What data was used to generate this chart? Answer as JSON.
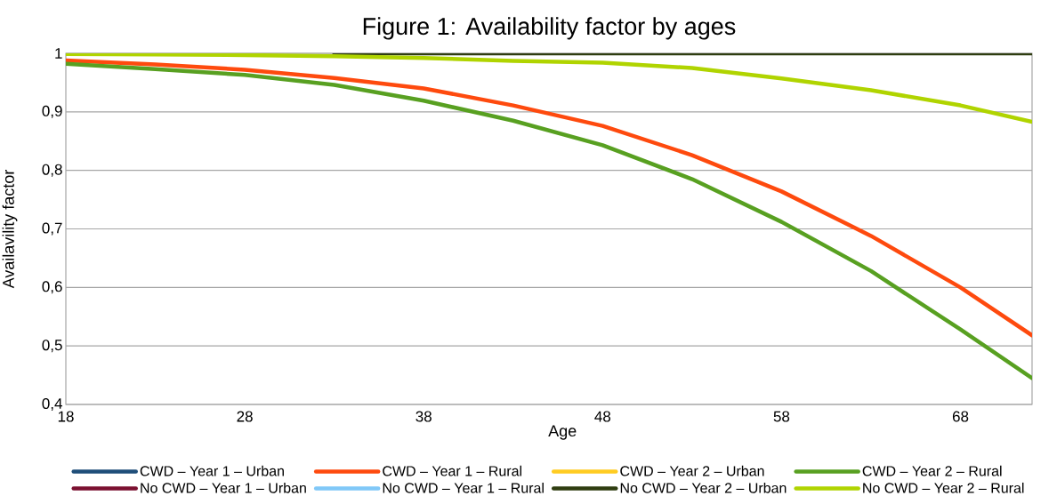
{
  "chart_data": {
    "type": "line",
    "title": "Figure 1: Availability factor by ages",
    "xlabel": "Age",
    "ylabel": "Availavility factor",
    "x": [
      18,
      23,
      28,
      33,
      38,
      43,
      48,
      53,
      58,
      63,
      68,
      72
    ],
    "xlim": [
      18,
      72
    ],
    "xticks": [
      18,
      28,
      38,
      48,
      58,
      68
    ],
    "ylim": [
      0.4,
      1
    ],
    "yticks": [
      {
        "value": 0.4,
        "label": "0,4"
      },
      {
        "value": 0.5,
        "label": "0,5"
      },
      {
        "value": 0.6,
        "label": "0,6"
      },
      {
        "value": 0.7,
        "label": "0,7"
      },
      {
        "value": 0.8,
        "label": "0,8"
      },
      {
        "value": 0.9,
        "label": "0,9"
      },
      1
    ],
    "grid": "y",
    "legend": "bottom",
    "marker": "none",
    "line_style": "solid",
    "series": [
      {
        "name": "CWD – Year 1 – Urban",
        "color": "#1f4e79",
        "values": [
          null,
          null,
          null,
          null,
          null,
          null,
          null,
          null,
          null,
          null,
          null,
          null
        ]
      },
      {
        "name": "CWD – Year 1 – Rural",
        "color": "#fe4a0e",
        "values": [
          0.988,
          0.981,
          0.972,
          0.958,
          0.94,
          0.911,
          0.876,
          0.826,
          0.764,
          0.688,
          0.6,
          0.518
        ]
      },
      {
        "name": "CWD – Year 2 – Urban",
        "color": "#ffcc22",
        "values": [
          null,
          null,
          null,
          null,
          null,
          null,
          null,
          null,
          null,
          null,
          null,
          null
        ]
      },
      {
        "name": "CWD – Year 2 – Rural",
        "color": "#58a021",
        "values": [
          0.982,
          0.973,
          0.963,
          0.946,
          0.919,
          0.885,
          0.843,
          0.785,
          0.712,
          0.628,
          0.528,
          0.445
        ]
      },
      {
        "name": "No CWD – Year 1 – Urban",
        "color": "#7b1030",
        "values": [
          null,
          null,
          null,
          null,
          null,
          null,
          null,
          null,
          null,
          null,
          null,
          null
        ]
      },
      {
        "name": "No CWD – Year 1 – Rural",
        "color": "#80c8f8",
        "values": [
          null,
          null,
          null,
          null,
          null,
          null,
          null,
          null,
          null,
          null,
          null,
          null
        ]
      },
      {
        "name": "No CWD – Year 2 – Urban",
        "color": "#2f3d10",
        "values": [
          null,
          null,
          null,
          1,
          1,
          1,
          1,
          1,
          1,
          1,
          1,
          1
        ]
      },
      {
        "name": "No CWD – Year 2 – Rural",
        "color": "#b0d400",
        "values": [
          0.999,
          0.998,
          0.997,
          0.995,
          0.992,
          0.987,
          0.984,
          0.975,
          0.957,
          0.937,
          0.911,
          0.883
        ]
      }
    ]
  }
}
